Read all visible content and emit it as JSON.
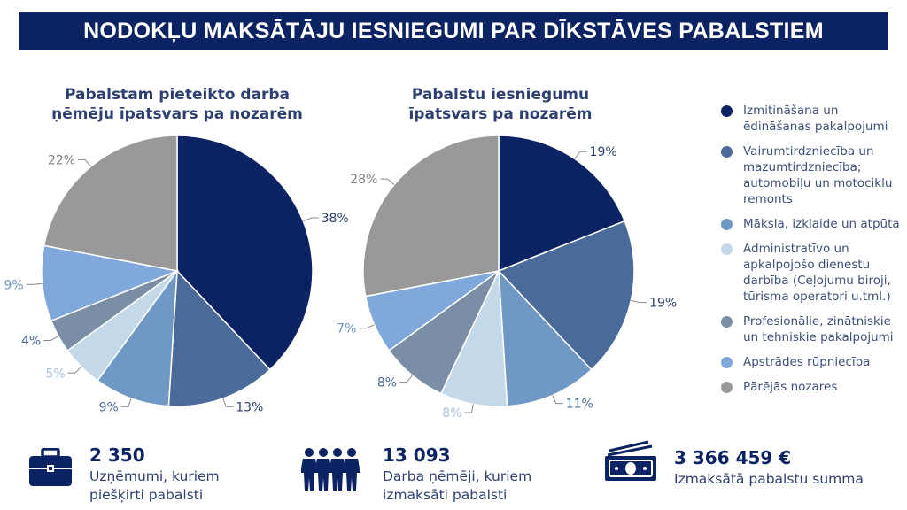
{
  "page_title": "NODOKĻU MAKSĀTĀJU IESNIEGUMI PAR DĪKSTĀVES PABALSTIEM",
  "colors": [
    "#0c2363",
    "#4a6a99",
    "#6f98c4",
    "#c3d9ea",
    "#7a8fa6",
    "#80a8db",
    "#999999"
  ],
  "legend": [
    "Izmitināšana un ēdināšanas pakalpojumi",
    "Vairumtirdzniecība un mazumtirdzniecība; automobiļu un motociklu remonts",
    "Māksla, izklaide un atpūta",
    "Administratīvo un apkalpojošo dienestu darbība (Ceļojumu biroji, tūrisma operatori u.tml.)",
    "Profesionālie, zinātniskie un tehniskie pakalpojumi",
    "Apstrādes rūpniecība",
    "Pārējās nozares"
  ],
  "chart_data": [
    {
      "type": "pie",
      "title_line1": "Pabalstam pieteikto darba",
      "title_line2": "ņēmēju īpatsvars pa nozarēm",
      "values": [
        38,
        13,
        9,
        5,
        4,
        9,
        22
      ],
      "labels": [
        "38%",
        "13%",
        "9%",
        "5%",
        "4%",
        "9%",
        "22%"
      ]
    },
    {
      "type": "pie",
      "title_line1": "Pabalstu iesniegumu",
      "title_line2": "īpatsvars pa nozarēm",
      "values": [
        19,
        19,
        11,
        8,
        8,
        7,
        28
      ],
      "labels": [
        "19%",
        "19%",
        "11%",
        "8%",
        "8%",
        "7%",
        "28%"
      ]
    }
  ],
  "stats": {
    "companies": {
      "value": "2 350",
      "line1": "Uzņēmumi, kuriem",
      "line2": "piešķirti pabalsti",
      "icon": "briefcase-icon"
    },
    "employees": {
      "value": "13 093",
      "line1": "Darba ņēmēji, kuriem",
      "line2": "izmaksāti pabalsti",
      "icon": "people-icon"
    },
    "amount": {
      "value": "3 366 459 €",
      "line1": "Izmaksātā pabalstu summa",
      "icon": "money-icon"
    }
  }
}
